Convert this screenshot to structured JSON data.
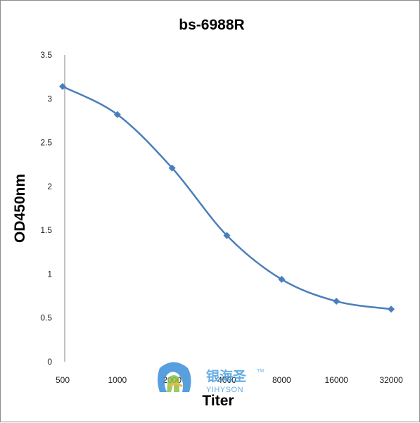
{
  "chart_data": {
    "type": "line",
    "title": "bs-6988R",
    "xlabel": "Titer",
    "ylabel": "OD450nm",
    "categories": [
      "500",
      "1000",
      "2000",
      "4000",
      "8000",
      "16000",
      "32000"
    ],
    "y_ticks": [
      "0",
      "0.5",
      "1",
      "1.5",
      "2",
      "2.5",
      "3",
      "3.5"
    ],
    "ylim": [
      0,
      3.5
    ],
    "series": [
      {
        "values": [
          3.14,
          2.82,
          2.21,
          1.44,
          0.94,
          0.69,
          0.6
        ]
      }
    ],
    "grid": false,
    "legend": "none",
    "colors": {
      "line": "#4a7ebb",
      "marker": "#4a7ebb",
      "axis": "#868686"
    }
  },
  "watermark": {
    "cn_text": "银海圣",
    "en_text": "YIHYSON",
    "tm": "TM"
  }
}
